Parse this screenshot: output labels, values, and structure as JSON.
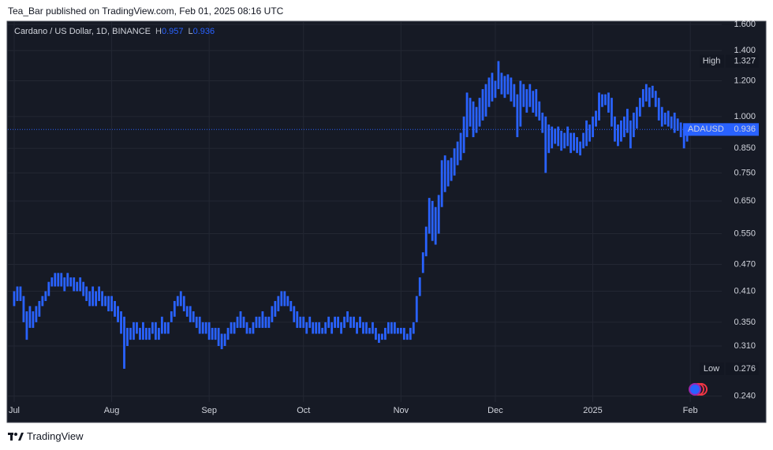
{
  "header": {
    "publisher": "Tea_Bar published on TradingView.com, Feb 01, 2025 08:16 UTC"
  },
  "footer": {
    "brand": "TradingView"
  },
  "chart_data": {
    "type": "hilo",
    "title": "Cardano / US Dollar, 1D, BINANCE",
    "legend": {
      "h_label": "H",
      "h": 0.957,
      "l_label": "L",
      "l": 0.936
    },
    "log_scale": true,
    "grid": true,
    "color": "#2962ff",
    "xlim": [
      -2,
      225
    ],
    "xticks": [
      {
        "value": 0,
        "label": "Jul"
      },
      {
        "value": 31,
        "label": "Aug"
      },
      {
        "value": 62,
        "label": "Sep"
      },
      {
        "value": 92,
        "label": "Oct"
      },
      {
        "value": 123,
        "label": "Nov"
      },
      {
        "value": 153,
        "label": "Dec"
      },
      {
        "value": 184,
        "label": "2025"
      },
      {
        "value": 215,
        "label": "Feb"
      }
    ],
    "ylim": [
      0.233,
      1.626
    ],
    "yticks": [
      {
        "value": 1.6,
        "label": "1.600"
      },
      {
        "value": 1.4,
        "label": "1.400"
      },
      {
        "value": 1.2,
        "label": "1.200"
      },
      {
        "value": 1.0,
        "label": "1.000"
      },
      {
        "value": 0.85,
        "label": "0.850"
      },
      {
        "value": 0.75,
        "label": "0.750"
      },
      {
        "value": 0.65,
        "label": "0.650"
      },
      {
        "value": 0.55,
        "label": "0.550"
      },
      {
        "value": 0.47,
        "label": "0.470"
      },
      {
        "value": 0.41,
        "label": "0.410"
      },
      {
        "value": 0.35,
        "label": "0.350"
      },
      {
        "value": 0.31,
        "label": "0.310"
      },
      {
        "value": 0.24,
        "label": "0.240"
      }
    ],
    "high": [
      0.41,
      0.42,
      0.42,
      0.4,
      0.37,
      0.38,
      0.37,
      0.38,
      0.39,
      0.4,
      0.41,
      0.43,
      0.44,
      0.45,
      0.45,
      0.45,
      0.44,
      0.45,
      0.44,
      0.44,
      0.43,
      0.44,
      0.43,
      0.42,
      0.41,
      0.42,
      0.41,
      0.42,
      0.41,
      0.4,
      0.4,
      0.4,
      0.39,
      0.38,
      0.37,
      0.36,
      0.34,
      0.34,
      0.35,
      0.35,
      0.34,
      0.35,
      0.34,
      0.34,
      0.35,
      0.35,
      0.34,
      0.36,
      0.35,
      0.35,
      0.37,
      0.39,
      0.4,
      0.41,
      0.4,
      0.38,
      0.38,
      0.37,
      0.36,
      0.36,
      0.35,
      0.35,
      0.35,
      0.34,
      0.34,
      0.34,
      0.33,
      0.33,
      0.34,
      0.35,
      0.35,
      0.36,
      0.37,
      0.36,
      0.35,
      0.34,
      0.35,
      0.36,
      0.36,
      0.37,
      0.36,
      0.36,
      0.38,
      0.39,
      0.4,
      0.41,
      0.41,
      0.4,
      0.39,
      0.38,
      0.37,
      0.36,
      0.36,
      0.35,
      0.36,
      0.35,
      0.35,
      0.35,
      0.34,
      0.35,
      0.36,
      0.35,
      0.36,
      0.36,
      0.35,
      0.36,
      0.37,
      0.36,
      0.36,
      0.35,
      0.36,
      0.35,
      0.35,
      0.34,
      0.35,
      0.34,
      0.33,
      0.33,
      0.34,
      0.35,
      0.35,
      0.35,
      0.34,
      0.34,
      0.34,
      0.33,
      0.34,
      0.35,
      0.4,
      0.44,
      0.5,
      0.57,
      0.66,
      0.65,
      0.63,
      0.67,
      0.8,
      0.82,
      0.8,
      0.81,
      0.85,
      0.88,
      0.92,
      1.0,
      1.13,
      1.1,
      1.08,
      1.05,
      1.1,
      1.15,
      1.18,
      1.22,
      1.25,
      1.2,
      1.327,
      1.25,
      1.23,
      1.24,
      1.22,
      1.18,
      1.12,
      1.2,
      1.18,
      1.15,
      1.18,
      1.14,
      1.15,
      1.08,
      1.02,
      1.0,
      0.96,
      0.95,
      0.94,
      0.95,
      0.93,
      0.92,
      0.95,
      0.92,
      0.92,
      0.9,
      0.88,
      0.92,
      0.98,
      0.96,
      1.0,
      1.03,
      1.13,
      1.12,
      1.12,
      1.13,
      1.1,
      1.0,
      0.96,
      0.98,
      1.0,
      1.04,
      0.98,
      1.02,
      1.05,
      1.1,
      1.15,
      1.18,
      1.16,
      1.17,
      1.14,
      1.1,
      1.05,
      1.02,
      1.03,
      1.0,
      1.02,
      0.99,
      0.97,
      0.95,
      0.96,
      0.957
    ],
    "low": [
      0.38,
      0.39,
      0.39,
      0.35,
      0.32,
      0.34,
      0.34,
      0.35,
      0.36,
      0.38,
      0.39,
      0.4,
      0.42,
      0.42,
      0.42,
      0.42,
      0.41,
      0.42,
      0.42,
      0.41,
      0.41,
      0.41,
      0.4,
      0.39,
      0.38,
      0.38,
      0.38,
      0.39,
      0.38,
      0.38,
      0.37,
      0.37,
      0.36,
      0.35,
      0.33,
      0.276,
      0.31,
      0.32,
      0.32,
      0.33,
      0.32,
      0.32,
      0.32,
      0.32,
      0.33,
      0.32,
      0.32,
      0.33,
      0.33,
      0.33,
      0.35,
      0.36,
      0.38,
      0.38,
      0.37,
      0.36,
      0.35,
      0.35,
      0.34,
      0.33,
      0.33,
      0.33,
      0.32,
      0.32,
      0.32,
      0.31,
      0.305,
      0.31,
      0.32,
      0.33,
      0.33,
      0.34,
      0.34,
      0.34,
      0.33,
      0.33,
      0.33,
      0.34,
      0.34,
      0.34,
      0.34,
      0.34,
      0.35,
      0.36,
      0.37,
      0.38,
      0.38,
      0.38,
      0.37,
      0.35,
      0.34,
      0.34,
      0.34,
      0.33,
      0.34,
      0.33,
      0.33,
      0.33,
      0.33,
      0.33,
      0.34,
      0.33,
      0.34,
      0.34,
      0.33,
      0.34,
      0.35,
      0.34,
      0.34,
      0.33,
      0.34,
      0.33,
      0.33,
      0.33,
      0.33,
      0.32,
      0.315,
      0.32,
      0.32,
      0.33,
      0.33,
      0.33,
      0.33,
      0.33,
      0.32,
      0.32,
      0.32,
      0.33,
      0.35,
      0.4,
      0.45,
      0.49,
      0.55,
      0.53,
      0.52,
      0.55,
      0.63,
      0.68,
      0.7,
      0.72,
      0.74,
      0.78,
      0.8,
      0.83,
      0.9,
      0.95,
      0.9,
      0.92,
      0.95,
      0.98,
      1.0,
      1.05,
      1.08,
      1.1,
      1.15,
      1.12,
      1.1,
      1.12,
      1.08,
      1.05,
      0.9,
      0.95,
      1.05,
      1.02,
      1.05,
      1.02,
      1.0,
      0.98,
      0.92,
      0.75,
      0.83,
      0.85,
      0.87,
      0.86,
      0.84,
      0.85,
      0.86,
      0.83,
      0.84,
      0.83,
      0.82,
      0.85,
      0.86,
      0.88,
      0.9,
      0.95,
      0.98,
      1.05,
      1.06,
      1.02,
      0.95,
      0.88,
      0.86,
      0.88,
      0.9,
      0.92,
      0.85,
      0.9,
      0.94,
      1.0,
      1.05,
      1.08,
      1.05,
      1.1,
      1.05,
      0.98,
      0.95,
      0.96,
      0.95,
      0.94,
      0.92,
      0.93,
      0.9,
      0.85,
      0.88,
      0.936
    ],
    "max_marker": {
      "label": "High",
      "value": 1.327
    },
    "min_marker": {
      "label": "Low",
      "value": 0.276
    },
    "last_price": {
      "name": "ADAUSD",
      "value": 0.936
    }
  }
}
